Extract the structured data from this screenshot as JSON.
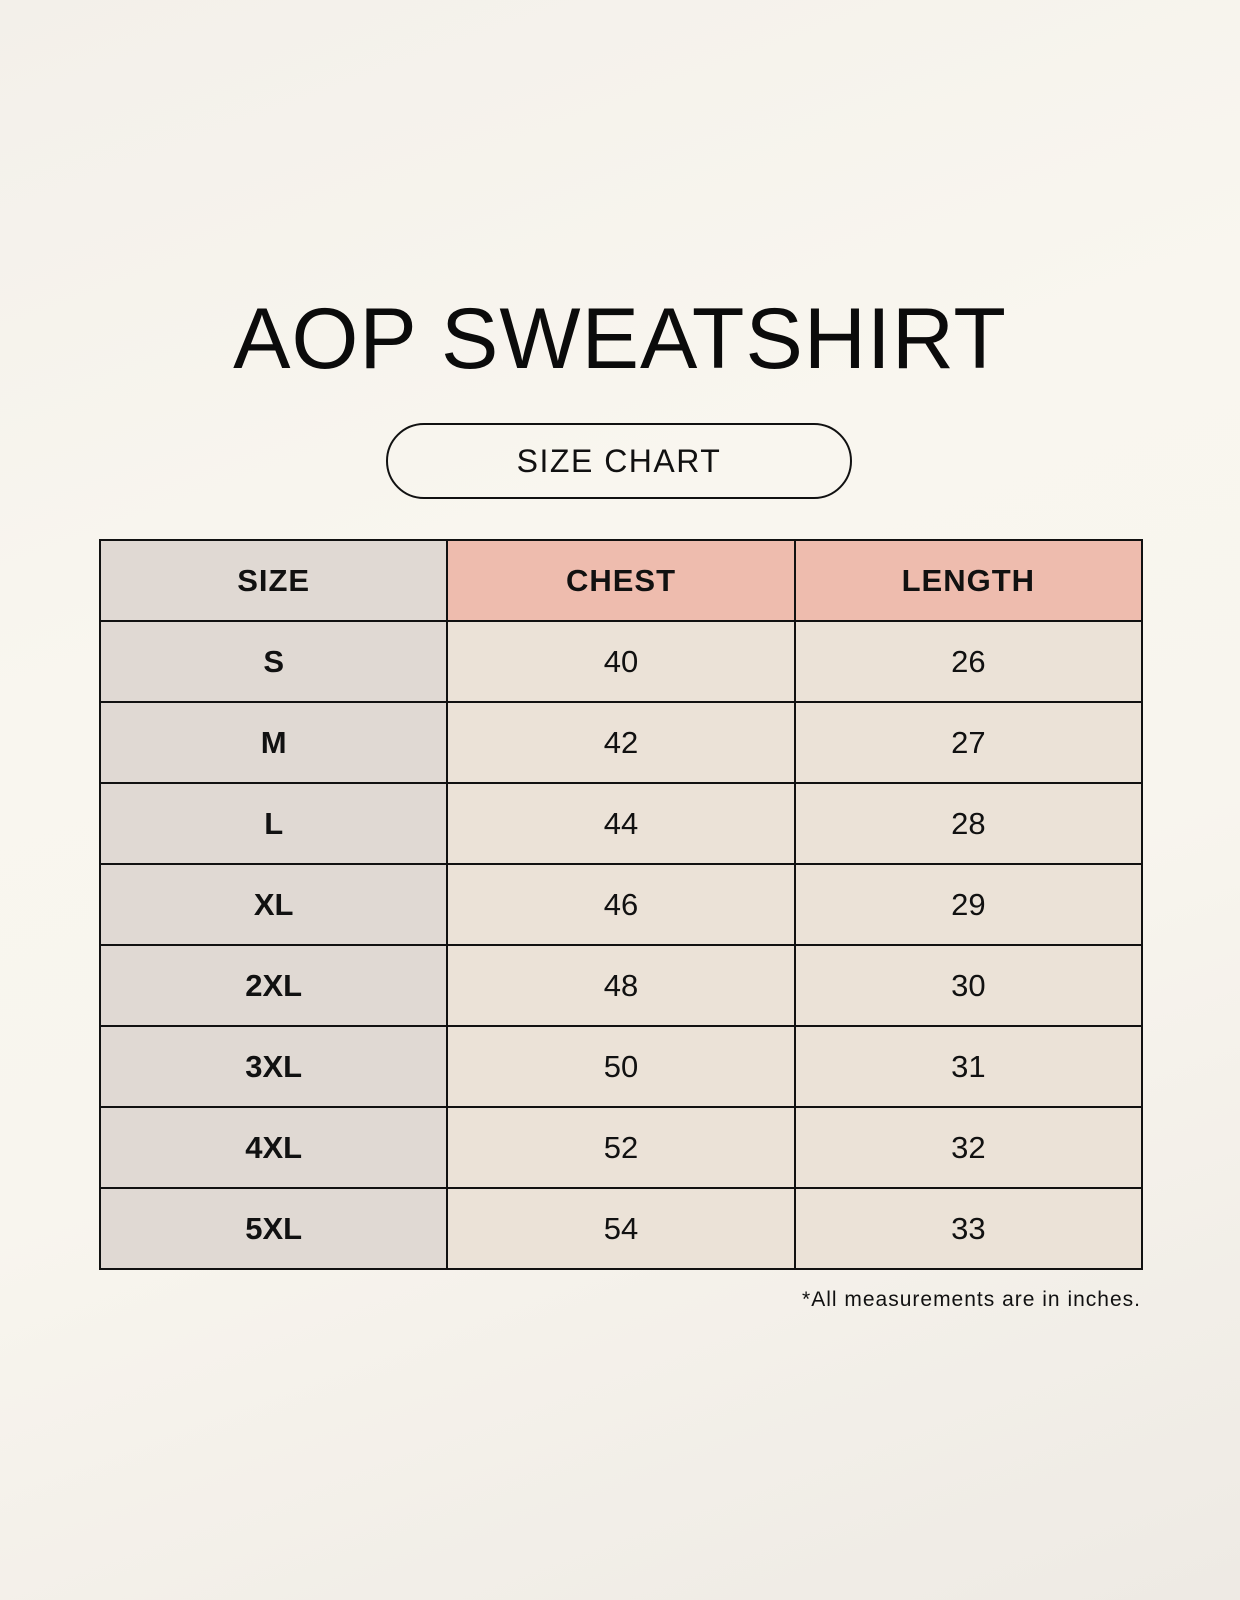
{
  "title": "AOP SWEATSHIRT",
  "subtitle": "SIZE CHART",
  "colors": {
    "size_column": "#e0d9d3",
    "measure_header": "#eebcae",
    "value_cells": "#ebe2d7"
  },
  "table": {
    "headers": [
      "SIZE",
      "CHEST",
      "LENGTH"
    ],
    "rows": [
      [
        "S",
        "40",
        "26"
      ],
      [
        "M",
        "42",
        "27"
      ],
      [
        "L",
        "44",
        "28"
      ],
      [
        "XL",
        "46",
        "29"
      ],
      [
        "2XL",
        "48",
        "30"
      ],
      [
        "3XL",
        "50",
        "31"
      ],
      [
        "4XL",
        "52",
        "32"
      ],
      [
        "5XL",
        "54",
        "33"
      ]
    ]
  },
  "footnote": "*All measurements are in inches."
}
